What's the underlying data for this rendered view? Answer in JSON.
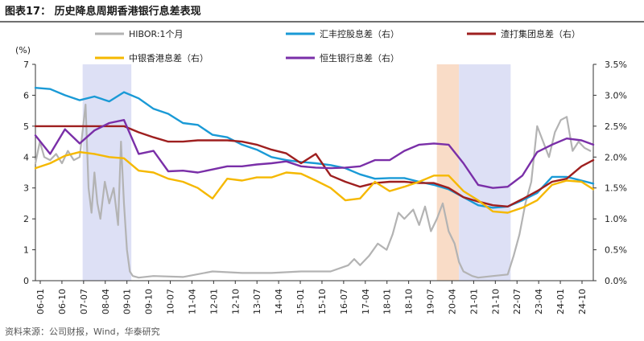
{
  "title": "图表17：  历史降息周期香港银行息差表现",
  "source": "资料来源：公司财报，Wind，华泰研究",
  "colors": {
    "hibor": "#b3b3b3",
    "hsbc": "#1a9ad6",
    "bochk": "#f5b800",
    "boc": "#9e1f1f",
    "hangseng": "#7a2fa8",
    "shade_blue": "#dde0f5",
    "shade_orange": "#f9dcc7"
  },
  "chart_data": {
    "type": "line",
    "left_axis": {
      "label": "(%)",
      "ylim": [
        0,
        7
      ],
      "ticks": [
        "0",
        "1",
        "2",
        "3",
        "4",
        "5",
        "6",
        "7"
      ]
    },
    "right_axis": {
      "ylim": [
        0,
        3.5
      ],
      "ticks": [
        "0.0%",
        "0.5%",
        "1.0%",
        "1.5%",
        "2.0%",
        "2.5%",
        "3.0%",
        "3.5%"
      ]
    },
    "x_ticks": [
      "06-01",
      "06-10",
      "07-07",
      "08-04",
      "09-01",
      "09-10",
      "10-07",
      "11-04",
      "12-01",
      "12-10",
      "13-07",
      "14-04",
      "15-01",
      "15-10",
      "16-07",
      "17-04",
      "18-01",
      "18-10",
      "19-07",
      "20-04",
      "21-01",
      "21-10",
      "22-07",
      "23-04",
      "24-01",
      "24-10"
    ],
    "x_range": [
      2006.0,
      2024.9
    ],
    "shaded_periods": [
      {
        "start": 2007.6,
        "end": 2009.25,
        "color": "blue"
      },
      {
        "start": 2019.6,
        "end": 2020.35,
        "color": "orange"
      },
      {
        "start": 2020.35,
        "end": 2022.1,
        "color": "blue"
      }
    ],
    "legend": [
      {
        "key": "hibor",
        "label": "HIBOR:1个月"
      },
      {
        "key": "hsbc",
        "label": "汇丰控股息差（右）"
      },
      {
        "key": "boc",
        "label": "渣打集团息差（右）"
      },
      {
        "key": "bochk",
        "label": "中银香港息差（右）"
      },
      {
        "key": "hangseng",
        "label": "恒生银行息差（右）"
      }
    ],
    "series": [
      {
        "key": "hibor",
        "axis": "left",
        "x": [
          2006.0,
          2006.15,
          2006.3,
          2006.5,
          2006.7,
          2006.9,
          2007.1,
          2007.3,
          2007.5,
          2007.7,
          2007.8,
          2007.9,
          2008.0,
          2008.1,
          2008.2,
          2008.35,
          2008.5,
          2008.65,
          2008.8,
          2008.9,
          2009.0,
          2009.1,
          2009.2,
          2009.3,
          2009.5,
          2010.0,
          2011.0,
          2012.0,
          2013.0,
          2014.0,
          2015.0,
          2016.0,
          2016.6,
          2016.8,
          2017.0,
          2017.3,
          2017.6,
          2017.9,
          2018.1,
          2018.3,
          2018.5,
          2018.8,
          2019.0,
          2019.2,
          2019.4,
          2019.6,
          2019.8,
          2020.0,
          2020.2,
          2020.35,
          2020.5,
          2020.8,
          2021.0,
          2021.5,
          2022.0,
          2022.2,
          2022.4,
          2022.6,
          2022.8,
          2023.0,
          2023.2,
          2023.4,
          2023.6,
          2023.8,
          2024.0,
          2024.2,
          2024.4,
          2024.6,
          2024.8
        ],
        "y": [
          3.8,
          4.5,
          4.0,
          3.9,
          4.1,
          3.8,
          4.2,
          3.9,
          4.0,
          5.7,
          3.0,
          2.2,
          3.5,
          2.5,
          2.0,
          3.2,
          2.5,
          3.0,
          1.8,
          4.5,
          2.5,
          1.0,
          0.3,
          0.15,
          0.1,
          0.15,
          0.12,
          0.3,
          0.25,
          0.25,
          0.3,
          0.3,
          0.5,
          0.7,
          0.5,
          0.8,
          1.2,
          1.0,
          1.5,
          2.2,
          2.0,
          2.3,
          1.8,
          2.4,
          1.6,
          2.0,
          2.5,
          1.6,
          1.2,
          0.6,
          0.3,
          0.15,
          0.1,
          0.15,
          0.2,
          0.8,
          1.5,
          2.5,
          3.2,
          5.0,
          4.5,
          4.0,
          4.8,
          5.2,
          5.3,
          4.2,
          4.5,
          4.3,
          4.2
        ]
      },
      {
        "key": "hsbc",
        "axis": "right",
        "x": [
          2006.0,
          2006.5,
          2007.0,
          2007.5,
          2008.0,
          2008.5,
          2009.0,
          2009.5,
          2010.0,
          2010.5,
          2011.0,
          2011.5,
          2012.0,
          2012.5,
          2013.0,
          2013.5,
          2014.0,
          2014.5,
          2015.0,
          2015.5,
          2016.0,
          2016.5,
          2017.0,
          2017.5,
          2018.0,
          2018.5,
          2019.0,
          2019.5,
          2020.0,
          2020.5,
          2021.0,
          2021.5,
          2022.0,
          2022.5,
          2023.0,
          2023.5,
          2024.0,
          2024.5,
          2024.9
        ],
        "y": [
          3.12,
          3.1,
          3.0,
          2.92,
          2.98,
          2.9,
          3.05,
          2.95,
          2.78,
          2.7,
          2.55,
          2.52,
          2.36,
          2.32,
          2.2,
          2.12,
          2.0,
          1.95,
          1.92,
          1.9,
          1.87,
          1.82,
          1.72,
          1.65,
          1.66,
          1.66,
          1.6,
          1.55,
          1.48,
          1.35,
          1.22,
          1.18,
          1.2,
          1.3,
          1.42,
          1.68,
          1.68,
          1.62,
          1.57
        ]
      },
      {
        "key": "boc",
        "axis": "right",
        "x": [
          2006.0,
          2006.5,
          2007.0,
          2007.5,
          2008.0,
          2008.5,
          2009.0,
          2009.5,
          2010.0,
          2010.5,
          2011.0,
          2011.5,
          2012.0,
          2012.5,
          2013.0,
          2013.5,
          2014.0,
          2014.5,
          2015.0,
          2015.5,
          2016.0,
          2016.5,
          2017.0,
          2017.5,
          2018.0,
          2018.5,
          2019.0,
          2019.5,
          2020.0,
          2020.5,
          2021.0,
          2021.5,
          2022.0,
          2022.5,
          2023.0,
          2023.5,
          2024.0,
          2024.5,
          2024.9
        ],
        "y": [
          2.5,
          2.5,
          2.5,
          2.5,
          2.5,
          2.5,
          2.5,
          2.4,
          2.32,
          2.25,
          2.25,
          2.27,
          2.27,
          2.27,
          2.25,
          2.2,
          2.12,
          2.06,
          1.9,
          2.05,
          1.7,
          1.6,
          1.52,
          1.58,
          1.6,
          1.6,
          1.58,
          1.58,
          1.5,
          1.35,
          1.28,
          1.22,
          1.2,
          1.32,
          1.45,
          1.6,
          1.65,
          1.85,
          1.95
        ]
      },
      {
        "key": "bochk",
        "axis": "right",
        "x": [
          2006.0,
          2006.5,
          2007.0,
          2007.5,
          2008.0,
          2008.5,
          2009.0,
          2009.5,
          2010.0,
          2010.5,
          2011.0,
          2011.5,
          2012.0,
          2012.5,
          2013.0,
          2013.5,
          2014.0,
          2014.5,
          2015.0,
          2015.5,
          2016.0,
          2016.5,
          2017.0,
          2017.5,
          2018.0,
          2018.5,
          2019.0,
          2019.5,
          2020.0,
          2020.5,
          2021.0,
          2021.5,
          2022.0,
          2022.5,
          2023.0,
          2023.5,
          2024.0,
          2024.5,
          2024.9
        ],
        "y": [
          1.82,
          1.9,
          2.02,
          2.08,
          2.05,
          2.0,
          1.98,
          1.78,
          1.75,
          1.65,
          1.6,
          1.5,
          1.33,
          1.65,
          1.62,
          1.67,
          1.67,
          1.75,
          1.73,
          1.62,
          1.5,
          1.3,
          1.33,
          1.6,
          1.45,
          1.52,
          1.6,
          1.7,
          1.7,
          1.45,
          1.3,
          1.12,
          1.1,
          1.18,
          1.3,
          1.55,
          1.62,
          1.6,
          1.48
        ]
      },
      {
        "key": "hangseng",
        "axis": "right",
        "x": [
          2006.0,
          2006.5,
          2007.0,
          2007.5,
          2008.0,
          2008.5,
          2009.0,
          2009.5,
          2010.0,
          2010.5,
          2011.0,
          2011.5,
          2012.0,
          2012.5,
          2013.0,
          2013.5,
          2014.0,
          2014.5,
          2015.0,
          2015.5,
          2016.0,
          2016.5,
          2017.0,
          2017.5,
          2018.0,
          2018.5,
          2019.0,
          2019.5,
          2020.0,
          2020.5,
          2021.0,
          2021.5,
          2022.0,
          2022.5,
          2023.0,
          2023.5,
          2024.0,
          2024.5,
          2024.9
        ],
        "y": [
          2.35,
          2.05,
          2.45,
          2.22,
          2.43,
          2.55,
          2.6,
          2.05,
          2.1,
          1.77,
          1.78,
          1.75,
          1.8,
          1.85,
          1.85,
          1.88,
          1.9,
          1.93,
          1.85,
          1.83,
          1.82,
          1.83,
          1.85,
          1.95,
          1.95,
          2.1,
          2.2,
          2.22,
          2.2,
          1.9,
          1.55,
          1.5,
          1.52,
          1.7,
          2.08,
          2.2,
          2.3,
          2.27,
          2.2
        ]
      }
    ]
  }
}
